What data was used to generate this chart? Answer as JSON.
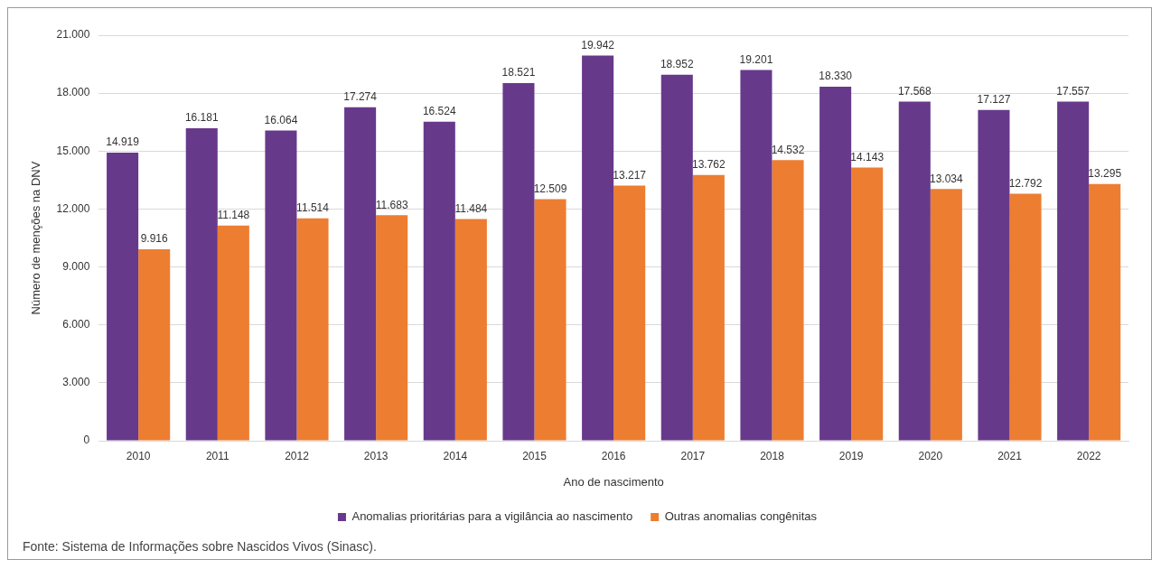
{
  "chart_data": {
    "type": "bar",
    "xlabel": "Ano de nascimento",
    "ylabel": "Número de menções na DNV",
    "categories": [
      "2010",
      "2011",
      "2012",
      "2013",
      "2014",
      "2015",
      "2016",
      "2017",
      "2018",
      "2019",
      "2020",
      "2021",
      "2022"
    ],
    "series": [
      {
        "name": "Anomalias prioritárias para a vigilância ao nascimento",
        "color": "#67398b",
        "values": [
          14919,
          16181,
          16064,
          17274,
          16524,
          18521,
          19942,
          18952,
          19201,
          18330,
          17568,
          17127,
          17557
        ],
        "value_labels": [
          "14.919",
          "16.181",
          "16.064",
          "17.274",
          "16.524",
          "18.521",
          "19.942",
          "18.952",
          "19.201",
          "18.330",
          "17.568",
          "17.127",
          "17.557"
        ]
      },
      {
        "name": "Outras anomalias congênitas",
        "color": "#ed7d31",
        "values": [
          9916,
          11148,
          11514,
          11683,
          11484,
          12509,
          13217,
          13762,
          14532,
          14143,
          13034,
          12792,
          13295
        ],
        "value_labels": [
          "9.916",
          "11.148",
          "11.514",
          "11.683",
          "11.484",
          "12.509",
          "13.217",
          "13.762",
          "14.532",
          "14.143",
          "13.034",
          "12.792",
          "13.295"
        ]
      }
    ],
    "ylim": [
      0,
      21000
    ],
    "yticks": [
      0,
      {
        "value": 3000,
        "label": "3.000"
      },
      {
        "value": 6000,
        "label": "6.000"
      },
      {
        "value": 9000,
        "label": "9.000"
      },
      {
        "value": 12000,
        "label": "12.000"
      },
      {
        "value": 15000,
        "label": "15.000"
      },
      {
        "value": 18000,
        "label": "18.000"
      },
      {
        "value": 21000,
        "label": "21.000"
      }
    ],
    "grid": "y",
    "legend": "bottom",
    "annotations": [
      "Fonte: Sistema de Informações sobre Nascidos Vivos (Sinasc)."
    ]
  }
}
